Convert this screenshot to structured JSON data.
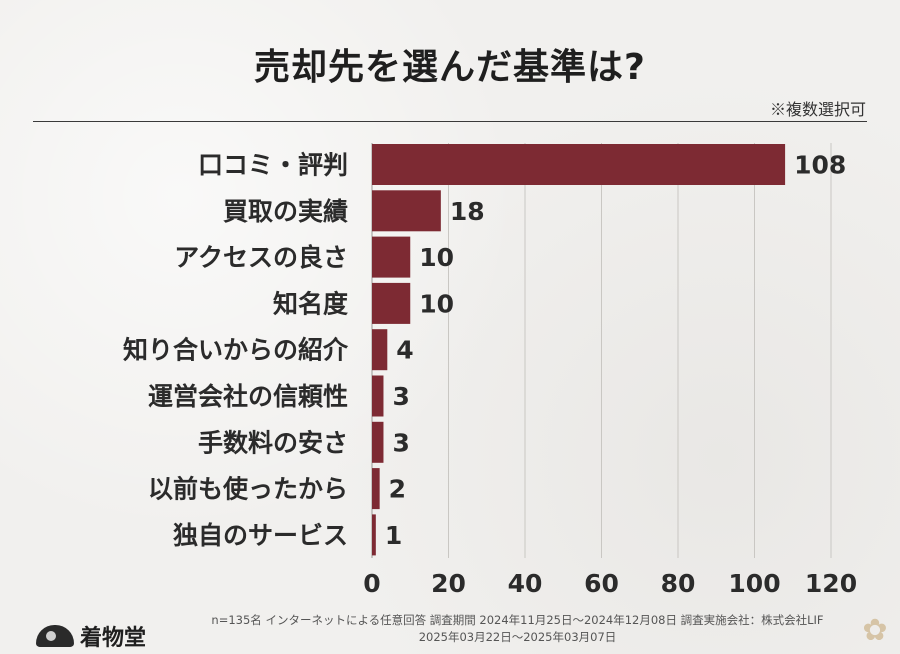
{
  "title": "売却先を選んだ基準は?",
  "note": "※複数選択可",
  "chart_data": {
    "type": "bar",
    "orientation": "horizontal",
    "title": "売却先を選んだ基準は?",
    "categories": [
      "口コミ・評判",
      "買取の実績",
      "アクセスの良さ",
      "知名度",
      "知り合いからの紹介",
      "運営会社の信頼性",
      "手数料の安さ",
      "以前も使ったから",
      "独自のサービス"
    ],
    "values": [
      108,
      18,
      10,
      10,
      4,
      3,
      3,
      2,
      1
    ],
    "xlim": [
      0,
      120
    ],
    "xticks": [
      0,
      20,
      40,
      60,
      80,
      100,
      120
    ],
    "grid": true,
    "bar_color": "#7d2a33"
  },
  "footer": {
    "line1": "n=135名 インターネットによる任意回答 調査期間 2024年11月25日〜2024年12月08日 調査実施会社：株式会社LIF",
    "line2": "2025年03月22日〜2025年03月07日"
  },
  "logo": {
    "text": "着物堂",
    "icon": "fan-icon"
  },
  "decoration": {
    "icon": "flower-icon"
  }
}
